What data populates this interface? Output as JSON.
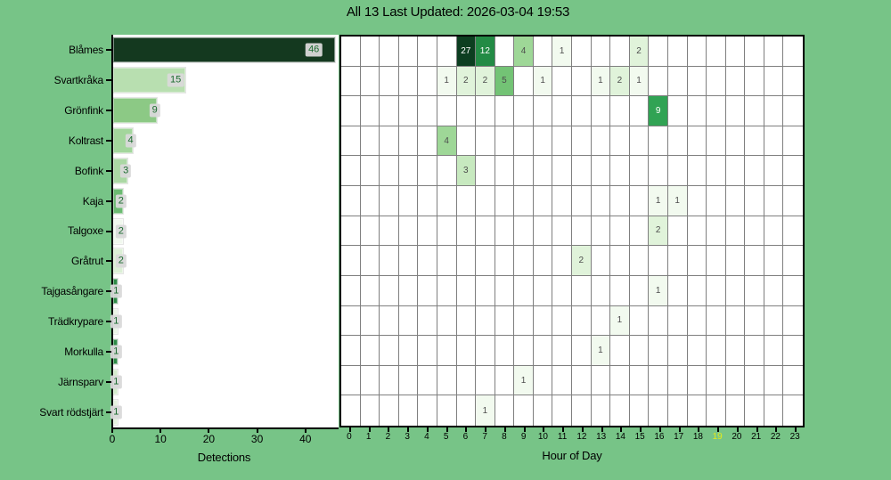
{
  "title": "All 13 Last Updated: 2026-03-04 19:53",
  "colors": {
    "figure_bg": "#77c487",
    "plot_bg": "#ffffff",
    "grid_line": "#7f7f7f",
    "axis_line": "#000000",
    "bar_label_bg": "#d9d9d9",
    "bar_label_text": "#1b6b2f",
    "cell_text_dark": "#4d4d4d",
    "cell_text_light": "#ffffff",
    "current_hour_color": "#e3ea1c",
    "heat_value_colors": {
      "1": "#f2faef",
      "2": "#e0f3da",
      "3": "#c7e9bf",
      "4": "#9ed797",
      "5": "#73c375",
      "9": "#31a354",
      "12": "#238b45",
      "27": "#0c3e20"
    }
  },
  "chart_data": [
    {
      "type": "bar",
      "orientation": "horizontal",
      "xlabel": "Detections",
      "xticks": [
        0,
        10,
        20,
        30,
        40
      ],
      "xlim": [
        0,
        46.6
      ],
      "categories": [
        "Blåmes",
        "Svartkråka",
        "Grönfink",
        "Koltrast",
        "Bofink",
        "Kaja",
        "Talgoxe",
        "Gråtrut",
        "Tajgasångare",
        "Trädkrypare",
        "Morkulla",
        "Järnsparv",
        "Svart rödstjärt"
      ],
      "values": [
        46,
        15,
        9,
        4,
        3,
        2,
        2,
        2,
        1,
        1,
        1,
        1,
        1
      ],
      "bar_colors": [
        "#14391f",
        "#b8dfb0",
        "#8cc985",
        "#a3d69c",
        "#abd8a4",
        "#6cbb72",
        "#f1f8ee",
        "#dcefd6",
        "#2e8b47",
        "#eaf5e6",
        "#2e8b47",
        "#d3ebcc",
        "#e4f2de"
      ]
    },
    {
      "type": "heatmap",
      "xlabel": "Hour of Day",
      "hours": [
        0,
        1,
        2,
        3,
        4,
        5,
        6,
        7,
        8,
        9,
        10,
        11,
        12,
        13,
        14,
        15,
        16,
        17,
        18,
        19,
        20,
        21,
        22,
        23
      ],
      "current_hour": 19,
      "light_text_min_value": 9,
      "rows": [
        {
          "species": "Blåmes",
          "cells": {
            "6": 27,
            "7": 12,
            "9": 4,
            "11": 1,
            "15": 2
          }
        },
        {
          "species": "Svartkråka",
          "cells": {
            "5": 1,
            "6": 2,
            "7": 2,
            "8": 5,
            "10": 1,
            "13": 1,
            "14": 2,
            "15": 1
          }
        },
        {
          "species": "Grönfink",
          "cells": {
            "16": 9
          }
        },
        {
          "species": "Koltrast",
          "cells": {
            "5": 4
          }
        },
        {
          "species": "Bofink",
          "cells": {
            "6": 3
          }
        },
        {
          "species": "Kaja",
          "cells": {
            "16": 1,
            "17": 1
          }
        },
        {
          "species": "Talgoxe",
          "cells": {
            "16": 2
          }
        },
        {
          "species": "Gråtrut",
          "cells": {
            "12": 2
          }
        },
        {
          "species": "Tajgasångare",
          "cells": {
            "16": 1
          }
        },
        {
          "species": "Trädkrypare",
          "cells": {
            "14": 1
          }
        },
        {
          "species": "Morkulla",
          "cells": {
            "13": 1
          }
        },
        {
          "species": "Järnsparv",
          "cells": {
            "9": 1
          }
        },
        {
          "species": "Svart rödstjärt",
          "cells": {
            "7": 1
          }
        }
      ]
    }
  ]
}
